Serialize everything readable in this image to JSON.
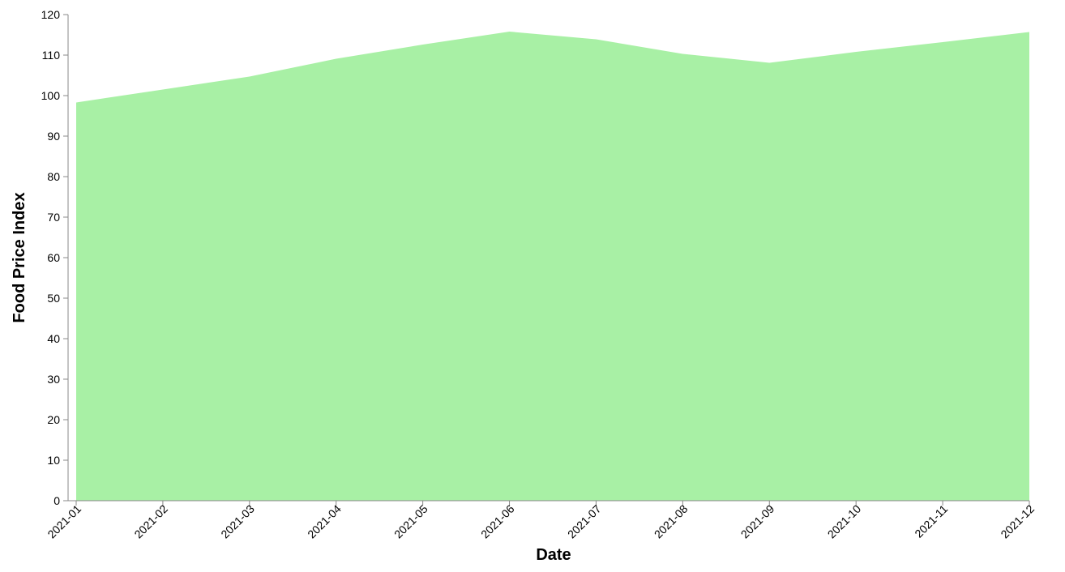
{
  "chart_data": {
    "type": "area",
    "title": "",
    "xlabel": "Date",
    "ylabel": "Food Price Index",
    "x": [
      "2021-01",
      "2021-02",
      "2021-03",
      "2021-04",
      "2021-05",
      "2021-06",
      "2021-07",
      "2021-08",
      "2021-09",
      "2021-10",
      "2021-11",
      "2021-12"
    ],
    "values": [
      98.3,
      101.5,
      104.7,
      109.1,
      112.6,
      115.8,
      113.9,
      110.3,
      108.1,
      110.8,
      113.2,
      115.7
    ],
    "ylim": [
      0,
      120
    ],
    "yticks": [
      0,
      10,
      20,
      30,
      40,
      50,
      60,
      70,
      80,
      90,
      100,
      110,
      120
    ],
    "grid": false,
    "legend": "none",
    "fill_color": "#a8f0a5",
    "axis_color": "#888888"
  }
}
